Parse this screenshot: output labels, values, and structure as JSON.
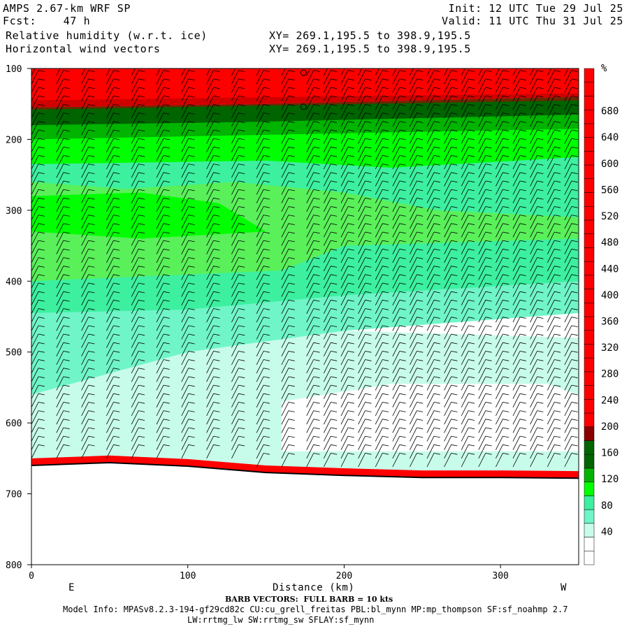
{
  "header": {
    "line1_left": "AMPS 2.67-km WRF SP",
    "line2_left": "Fcst:    47 h",
    "line3_left": "Relative humidity (w.r.t. ice)",
    "line4_left": "Horizontal wind vectors",
    "line1_right": "Init: 12 UTC Tue 29 Jul 25",
    "line2_right": "Valid: 11 UTC Thu 31 Jul 25",
    "line3_mid": "XY= 269.1,195.5 to 398.9,195.5",
    "line4_mid": "XY= 269.1,195.5 to 398.9,195.5"
  },
  "footer": {
    "barb_note": "BARB VECTORS:  FULL BARB = 10 kts",
    "model_info": "Model Info: MPASv8.2.3-194-gf29cd82c CU:cu_grell_freitas PBL:bl_mynn MP:mp_thompson SF:sf_noahmp 2.7",
    "model_info2": "LW:rrtmg_lw SW:rrtmg_sw SFLAY:sf_mynn"
  },
  "colors": {
    "red": "#ff0000",
    "dark_red": "#b00000",
    "dark_green": "#006400",
    "green": "#00b400",
    "bright_green": "#00ff00",
    "light_green": "#5af05a",
    "aqua_green": "#3cf0a0",
    "aqua": "#70f5c8",
    "pale_aqua": "#c8fcea",
    "white": "#ffffff"
  },
  "chart_data": {
    "type": "heatmap",
    "title": "Relative humidity (w.r.t. ice)",
    "xlabel": "Distance (km)",
    "ylabel": "",
    "x_range": [
      0,
      350
    ],
    "y_range": [
      100,
      800
    ],
    "y_inverted": true,
    "x_ticks": [
      0,
      100,
      200,
      300
    ],
    "y_ticks": [
      100,
      200,
      300,
      400,
      500,
      600,
      700,
      800
    ],
    "x_end_labels": {
      "left": "E",
      "right": "W"
    },
    "colorbar": {
      "unit": "%",
      "labels": [
        40,
        80,
        120,
        160,
        200,
        240,
        280,
        320,
        360,
        400,
        440,
        480,
        520,
        560,
        600,
        640,
        680
      ]
    },
    "approx_layers_rh_percent": [
      {
        "pressure_top": 100,
        "pressure_bottom": 150,
        "rh": ">120"
      },
      {
        "pressure_top": 150,
        "pressure_bottom": 190,
        "rh": "90-110"
      },
      {
        "pressure_top": 190,
        "pressure_bottom": 260,
        "rh": "60-80"
      },
      {
        "pressure_top": 260,
        "pressure_bottom": 380,
        "rh": "60-70"
      },
      {
        "pressure_top": 380,
        "pressure_bottom": 480,
        "rh": "40-50"
      },
      {
        "pressure_top": 480,
        "pressure_bottom": 560,
        "rh": "20-40"
      },
      {
        "pressure_top": 560,
        "pressure_bottom": 650,
        "rh": "10-30"
      },
      {
        "pressure_top": 650,
        "pressure_bottom": 675,
        "rh": ">120 (surface)"
      }
    ],
    "terrain_surface_pressure": [
      {
        "x": 0,
        "p": 660
      },
      {
        "x": 50,
        "p": 656
      },
      {
        "x": 100,
        "p": 661
      },
      {
        "x": 150,
        "p": 670
      },
      {
        "x": 200,
        "p": 674
      },
      {
        "x": 250,
        "p": 677
      },
      {
        "x": 300,
        "p": 677
      },
      {
        "x": 350,
        "p": 678
      }
    ],
    "grid": false
  }
}
